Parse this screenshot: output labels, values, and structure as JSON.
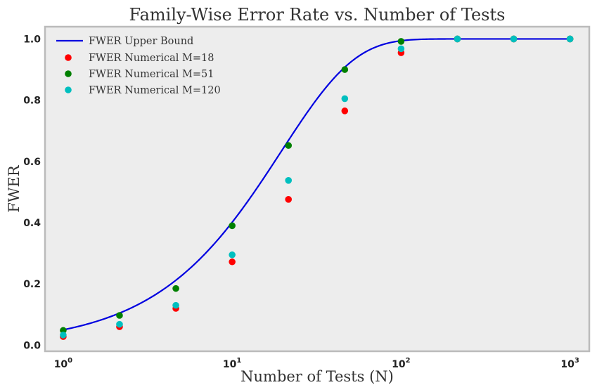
{
  "chart_data": {
    "type": "scatter",
    "title": "Family-Wise Error Rate vs. Number of Tests",
    "xlabel": "Number of Tests (N)",
    "ylabel": "FWER",
    "xscale": "log",
    "xlim": [
      0.78,
      1300
    ],
    "ylim": [
      -0.02,
      1.04
    ],
    "x_ticks": [
      {
        "value": 1,
        "base": "10",
        "exp": "0"
      },
      {
        "value": 10,
        "base": "10",
        "exp": "1"
      },
      {
        "value": 100,
        "base": "10",
        "exp": "2"
      },
      {
        "value": 1000,
        "base": "10",
        "exp": "3"
      }
    ],
    "y_ticks": [
      {
        "value": 0.0,
        "label": "0.0"
      },
      {
        "value": 0.2,
        "label": "0.2"
      },
      {
        "value": 0.4,
        "label": "0.4"
      },
      {
        "value": 0.6,
        "label": "0.6"
      },
      {
        "value": 0.8,
        "label": "0.8"
      },
      {
        "value": 1.0,
        "label": "1.0"
      }
    ],
    "grid": false,
    "legend_position": "top-left",
    "background_color": "#ededed",
    "border_color": "#bbbbbb",
    "line": {
      "name": "FWER Upper Bound",
      "color": "#0000e0",
      "formula": "1 - (1 - 0.05)^N",
      "alpha": 0.05
    },
    "series": [
      {
        "name": "FWER Numerical M=18",
        "color": "#ff0000",
        "x": [
          1,
          2.154,
          4.642,
          10,
          21.54,
          46.42,
          100,
          215.4,
          464.2,
          1000
        ],
        "y": [
          0.028,
          0.06,
          0.12,
          0.272,
          0.476,
          0.765,
          0.955,
          1.0,
          1.0,
          1.0
        ]
      },
      {
        "name": "FWER Numerical M=51",
        "color": "#008000",
        "x": [
          1,
          2.154,
          4.642,
          10,
          21.54,
          46.42,
          100,
          215.4,
          464.2,
          1000
        ],
        "y": [
          0.048,
          0.097,
          0.185,
          0.39,
          0.652,
          0.9,
          0.992,
          1.0,
          1.0,
          1.0
        ]
      },
      {
        "name": "FWER Numerical M=120",
        "color": "#00bfbf",
        "x": [
          1,
          2.154,
          4.642,
          10,
          21.54,
          46.42,
          100,
          215.4,
          464.2,
          1000
        ],
        "y": [
          0.033,
          0.068,
          0.13,
          0.295,
          0.538,
          0.805,
          0.968,
          1.0,
          1.0,
          1.0
        ]
      }
    ]
  }
}
